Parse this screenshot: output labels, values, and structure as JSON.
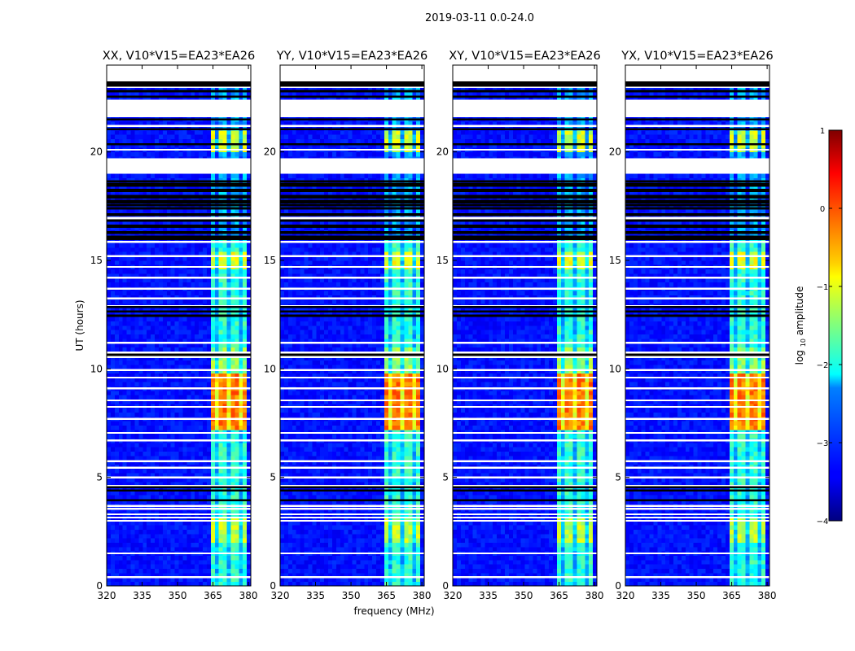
{
  "figure": {
    "suptitle": "2019-03-11 0.0-24.0"
  },
  "chart_data": {
    "type": "heatmap",
    "title": "2019-03-11 0.0-24.0",
    "xlabel": "frequency (MHz)",
    "ylabel": "UT (hours)",
    "xlim": [
      320,
      381
    ],
    "ylim": [
      0,
      24
    ],
    "x_ticks": [
      320,
      335,
      350,
      365,
      380
    ],
    "y_ticks": [
      0,
      5,
      10,
      15,
      20
    ],
    "panels": [
      {
        "title": "XX, V10*V15=EA23*EA26"
      },
      {
        "title": "YY, V10*V15=EA23*EA26"
      },
      {
        "title": "XY, V10*V15=EA23*EA26"
      },
      {
        "title": "YX, V10*V15=EA23*EA26"
      }
    ],
    "colorbar": {
      "label": "log",
      "label_sub": "10",
      "label_tail": " amplitude",
      "range": [
        -4,
        1
      ],
      "ticks": [
        "1",
        "0",
        "−1",
        "−2",
        "−3",
        "−4"
      ],
      "colormap": "jet"
    },
    "rfi_band_mhz": [
      364,
      380
    ],
    "rfi_channels_mhz": [
      364.8,
      369.5,
      374.5,
      379.0
    ],
    "rfi_peak_ut_hours": [
      7.3,
      9.8
    ],
    "flagged_white_ut_hours": [
      0.4,
      1.5,
      3.0,
      3.15,
      3.3,
      3.55,
      3.68,
      4.6,
      5.0,
      5.45,
      5.75,
      6.7,
      7.05,
      7.7,
      8.25,
      8.55,
      9.1,
      9.6,
      9.95,
      10.55,
      10.75,
      11.2,
      12.9,
      13.25,
      13.7,
      14.2,
      14.7,
      15.2,
      15.85,
      20.1,
      21.2,
      22.0,
      22.3,
      23.0
    ],
    "flagged_black_ut_hours": [
      3.95,
      4.4,
      4.55,
      10.65,
      12.45,
      12.65,
      12.85,
      16.1,
      16.3,
      16.6,
      17.1,
      17.4,
      17.55,
      17.75,
      17.9,
      18.2,
      18.45,
      18.65,
      19.1,
      20.35,
      21.05,
      21.5,
      21.7,
      22.55,
      22.8,
      23.05,
      23.15,
      23.25
    ]
  }
}
